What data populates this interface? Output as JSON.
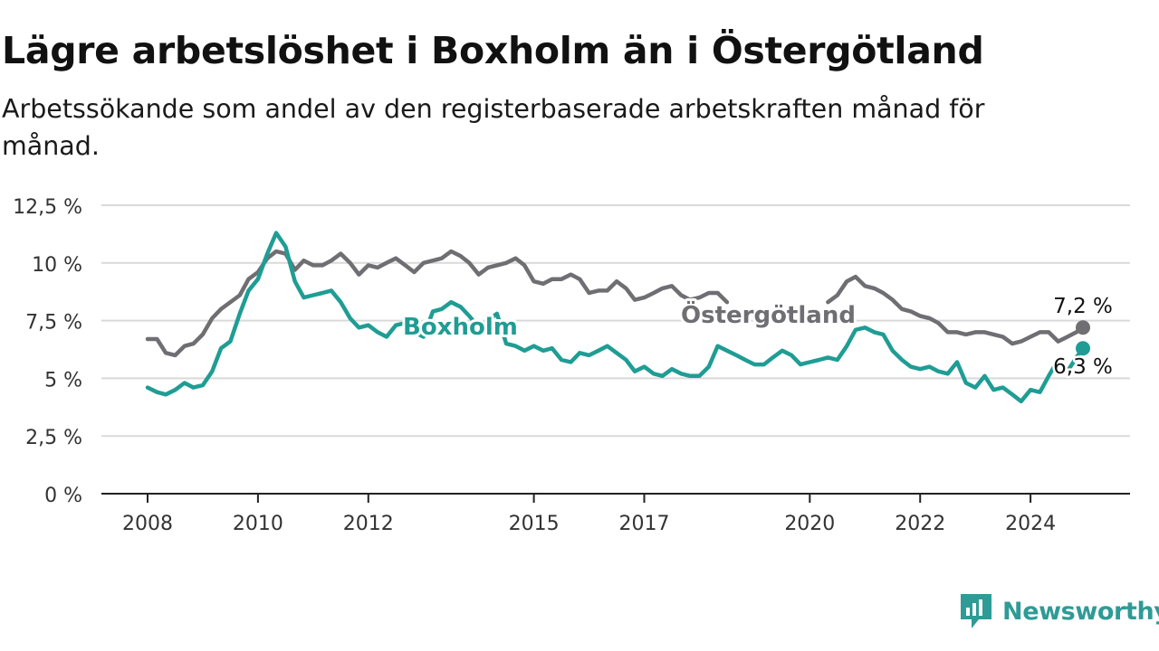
{
  "header": {
    "title": "Lägre arbetslöshet i Boxholm än i Östergötland",
    "subtitle": "Arbetssökande som andel av den registerbaserade arbetskraften månad för månad."
  },
  "brand": {
    "name": "Newsworthy",
    "icon": "newsworthy-logo-icon",
    "color": "#2e9b96"
  },
  "chart_data": {
    "type": "line",
    "title": "Lägre arbetslöshet i Boxholm än i Östergötland",
    "subtitle": "Arbetssökande som andel av den registerbaserade arbetskraften månad för månad.",
    "xlabel": "",
    "ylabel": "",
    "x_range": [
      2008.0,
      2024.95
    ],
    "ylim": [
      0,
      12.5
    ],
    "y_ticks": [
      0,
      2.5,
      5,
      7.5,
      10,
      12.5
    ],
    "y_tick_labels": [
      "0 %",
      "2,5 %",
      "5 %",
      "7,5 %",
      "10 %",
      "12,5 %"
    ],
    "x_ticks": [
      2008,
      2010,
      2012,
      2015,
      2017,
      2020,
      2022,
      2024
    ],
    "x_tick_labels": [
      "2008",
      "2010",
      "2012",
      "2015",
      "2017",
      "2020",
      "2022",
      "2024"
    ],
    "grid": true,
    "series": [
      {
        "name": "Östergötland",
        "color": "#6e6e73",
        "end_label": "7,2 %",
        "points": [
          [
            2008.0,
            6.7
          ],
          [
            2008.17,
            6.7
          ],
          [
            2008.33,
            6.1
          ],
          [
            2008.5,
            6.0
          ],
          [
            2008.67,
            6.4
          ],
          [
            2008.83,
            6.5
          ],
          [
            2009.0,
            6.9
          ],
          [
            2009.17,
            7.6
          ],
          [
            2009.33,
            8.0
          ],
          [
            2009.5,
            8.3
          ],
          [
            2009.67,
            8.6
          ],
          [
            2009.83,
            9.3
          ],
          [
            2010.0,
            9.6
          ],
          [
            2010.17,
            10.2
          ],
          [
            2010.33,
            10.5
          ],
          [
            2010.5,
            10.4
          ],
          [
            2010.67,
            9.7
          ],
          [
            2010.83,
            10.1
          ],
          [
            2011.0,
            9.9
          ],
          [
            2011.17,
            9.9
          ],
          [
            2011.33,
            10.1
          ],
          [
            2011.5,
            10.4
          ],
          [
            2011.67,
            10.0
          ],
          [
            2011.83,
            9.5
          ],
          [
            2012.0,
            9.9
          ],
          [
            2012.17,
            9.8
          ],
          [
            2012.33,
            10.0
          ],
          [
            2012.5,
            10.2
          ],
          [
            2012.67,
            9.9
          ],
          [
            2012.83,
            9.6
          ],
          [
            2013.0,
            10.0
          ],
          [
            2013.17,
            10.1
          ],
          [
            2013.33,
            10.2
          ],
          [
            2013.5,
            10.5
          ],
          [
            2013.67,
            10.3
          ],
          [
            2013.83,
            10.0
          ],
          [
            2014.0,
            9.5
          ],
          [
            2014.17,
            9.8
          ],
          [
            2014.33,
            9.9
          ],
          [
            2014.5,
            10.0
          ],
          [
            2014.67,
            10.2
          ],
          [
            2014.83,
            9.9
          ],
          [
            2015.0,
            9.2
          ],
          [
            2015.17,
            9.1
          ],
          [
            2015.33,
            9.3
          ],
          [
            2015.5,
            9.3
          ],
          [
            2015.67,
            9.5
          ],
          [
            2015.83,
            9.3
          ],
          [
            2016.0,
            8.7
          ],
          [
            2016.17,
            8.8
          ],
          [
            2016.33,
            8.8
          ],
          [
            2016.5,
            9.2
          ],
          [
            2016.67,
            8.9
          ],
          [
            2016.83,
            8.4
          ],
          [
            2017.0,
            8.5
          ],
          [
            2017.17,
            8.7
          ],
          [
            2017.33,
            8.9
          ],
          [
            2017.5,
            9.0
          ],
          [
            2017.67,
            8.6
          ],
          [
            2017.83,
            8.4
          ],
          [
            2018.0,
            8.5
          ],
          [
            2018.17,
            8.7
          ],
          [
            2018.33,
            8.7
          ],
          [
            2018.5,
            8.3
          ],
          [
            2020.33,
            8.3
          ],
          [
            2020.5,
            8.6
          ],
          [
            2020.67,
            9.2
          ],
          [
            2020.83,
            9.4
          ],
          [
            2021.0,
            9.0
          ],
          [
            2021.17,
            8.9
          ],
          [
            2021.33,
            8.7
          ],
          [
            2021.5,
            8.4
          ],
          [
            2021.67,
            8.0
          ],
          [
            2021.83,
            7.9
          ],
          [
            2022.0,
            7.7
          ],
          [
            2022.17,
            7.6
          ],
          [
            2022.33,
            7.4
          ],
          [
            2022.5,
            7.0
          ],
          [
            2022.67,
            7.0
          ],
          [
            2022.83,
            6.9
          ],
          [
            2023.0,
            7.0
          ],
          [
            2023.17,
            7.0
          ],
          [
            2023.33,
            6.9
          ],
          [
            2023.5,
            6.8
          ],
          [
            2023.67,
            6.5
          ],
          [
            2023.83,
            6.6
          ],
          [
            2024.0,
            6.8
          ],
          [
            2024.17,
            7.0
          ],
          [
            2024.33,
            7.0
          ],
          [
            2024.5,
            6.6
          ],
          [
            2024.67,
            6.8
          ],
          [
            2024.83,
            7.0
          ],
          [
            2024.95,
            7.2
          ]
        ]
      },
      {
        "name": "Boxholm",
        "color": "#1f9d94",
        "end_label": "6,3 %",
        "points": [
          [
            2008.0,
            4.6
          ],
          [
            2008.17,
            4.4
          ],
          [
            2008.33,
            4.3
          ],
          [
            2008.5,
            4.5
          ],
          [
            2008.67,
            4.8
          ],
          [
            2008.83,
            4.6
          ],
          [
            2009.0,
            4.7
          ],
          [
            2009.17,
            5.3
          ],
          [
            2009.33,
            6.3
          ],
          [
            2009.5,
            6.6
          ],
          [
            2009.67,
            7.8
          ],
          [
            2009.83,
            8.8
          ],
          [
            2010.0,
            9.3
          ],
          [
            2010.17,
            10.4
          ],
          [
            2010.33,
            11.3
          ],
          [
            2010.5,
            10.7
          ],
          [
            2010.67,
            9.2
          ],
          [
            2010.83,
            8.5
          ],
          [
            2011.0,
            8.6
          ],
          [
            2011.17,
            8.7
          ],
          [
            2011.33,
            8.8
          ],
          [
            2011.5,
            8.3
          ],
          [
            2011.67,
            7.6
          ],
          [
            2011.83,
            7.2
          ],
          [
            2012.0,
            7.3
          ],
          [
            2012.17,
            7.0
          ],
          [
            2012.33,
            6.8
          ],
          [
            2012.5,
            7.3
          ],
          [
            2012.67,
            7.4
          ],
          [
            2012.83,
            7.0
          ],
          [
            2013.0,
            6.8
          ],
          [
            2013.17,
            7.9
          ],
          [
            2013.33,
            8.0
          ],
          [
            2013.5,
            8.3
          ],
          [
            2013.67,
            8.1
          ],
          [
            2013.83,
            7.7
          ],
          [
            2014.0,
            7.2
          ],
          [
            2014.17,
            7.5
          ],
          [
            2014.33,
            7.8
          ],
          [
            2014.5,
            6.5
          ],
          [
            2014.67,
            6.4
          ],
          [
            2014.83,
            6.2
          ],
          [
            2015.0,
            6.4
          ],
          [
            2015.17,
            6.2
          ],
          [
            2015.33,
            6.3
          ],
          [
            2015.5,
            5.8
          ],
          [
            2015.67,
            5.7
          ],
          [
            2015.83,
            6.1
          ],
          [
            2016.0,
            6.0
          ],
          [
            2016.17,
            6.2
          ],
          [
            2016.33,
            6.4
          ],
          [
            2016.5,
            6.1
          ],
          [
            2016.67,
            5.8
          ],
          [
            2016.83,
            5.3
          ],
          [
            2017.0,
            5.5
          ],
          [
            2017.17,
            5.2
          ],
          [
            2017.33,
            5.1
          ],
          [
            2017.5,
            5.4
          ],
          [
            2017.67,
            5.2
          ],
          [
            2017.83,
            5.1
          ],
          [
            2018.0,
            5.1
          ],
          [
            2018.17,
            5.5
          ],
          [
            2018.33,
            6.4
          ],
          [
            2018.5,
            6.2
          ],
          [
            2018.67,
            6.0
          ],
          [
            2018.83,
            5.8
          ],
          [
            2019.0,
            5.6
          ],
          [
            2019.17,
            5.6
          ],
          [
            2019.33,
            5.9
          ],
          [
            2019.5,
            6.2
          ],
          [
            2019.67,
            6.0
          ],
          [
            2019.83,
            5.6
          ],
          [
            2020.0,
            5.7
          ],
          [
            2020.17,
            5.8
          ],
          [
            2020.33,
            5.9
          ],
          [
            2020.5,
            5.8
          ],
          [
            2020.67,
            6.4
          ],
          [
            2020.83,
            7.1
          ],
          [
            2021.0,
            7.2
          ],
          [
            2021.17,
            7.0
          ],
          [
            2021.33,
            6.9
          ],
          [
            2021.5,
            6.2
          ],
          [
            2021.67,
            5.8
          ],
          [
            2021.83,
            5.5
          ],
          [
            2022.0,
            5.4
          ],
          [
            2022.17,
            5.5
          ],
          [
            2022.33,
            5.3
          ],
          [
            2022.5,
            5.2
          ],
          [
            2022.67,
            5.7
          ],
          [
            2022.83,
            4.8
          ],
          [
            2023.0,
            4.6
          ],
          [
            2023.17,
            5.1
          ],
          [
            2023.33,
            4.5
          ],
          [
            2023.5,
            4.6
          ],
          [
            2023.67,
            4.3
          ],
          [
            2023.83,
            4.0
          ],
          [
            2024.0,
            4.5
          ],
          [
            2024.17,
            4.4
          ],
          [
            2024.33,
            5.1
          ],
          [
            2024.5,
            5.8
          ],
          [
            2024.67,
            5.3
          ],
          [
            2024.83,
            5.9
          ],
          [
            2024.95,
            6.3
          ]
        ]
      }
    ]
  }
}
